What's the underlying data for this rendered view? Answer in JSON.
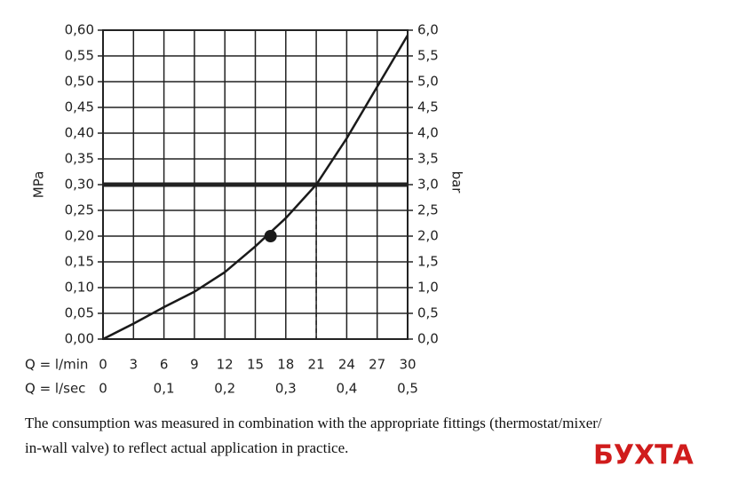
{
  "chart_data": {
    "type": "line",
    "x_label": "Q = l/min",
    "x2_label": "Q = l/sec",
    "y_label": "MPa",
    "y2_label": "bar",
    "x": [
      0,
      3,
      6,
      9,
      12,
      15,
      18,
      21,
      24,
      27,
      30
    ],
    "series": [
      {
        "color": "#1a1a1a",
        "values": [
          0,
          0.03,
          0.062,
          0.092,
          0.13,
          0.18,
          0.235,
          0.3,
          0.39,
          0.49,
          0.59
        ]
      }
    ],
    "xlim": [
      0,
      30
    ],
    "xticks": [
      0,
      3,
      6,
      9,
      12,
      15,
      18,
      21,
      24,
      27,
      30
    ],
    "x2lim": [
      0,
      0.5
    ],
    "x2ticks": [
      0,
      {
        "value": 0.1,
        "label": "0,1"
      },
      {
        "value": 0.2,
        "label": "0,2"
      },
      {
        "value": 0.3,
        "label": "0,3"
      },
      {
        "value": 0.4,
        "label": "0,4"
      },
      {
        "value": 0.5,
        "label": "0,5"
      }
    ],
    "ylim": [
      0,
      0.6
    ],
    "yticks": [
      {
        "value": 0,
        "label": "0,00"
      },
      {
        "value": 0.05,
        "label": "0,05"
      },
      {
        "value": 0.1,
        "label": "0,10"
      },
      {
        "value": 0.15,
        "label": "0,15"
      },
      {
        "value": 0.2,
        "label": "0,20"
      },
      {
        "value": 0.25,
        "label": "0,25"
      },
      {
        "value": 0.3,
        "label": "0,30"
      },
      {
        "value": 0.35,
        "label": "0,35"
      },
      {
        "value": 0.4,
        "label": "0,40"
      },
      {
        "value": 0.45,
        "label": "0,45"
      },
      {
        "value": 0.5,
        "label": "0,50"
      },
      {
        "value": 0.55,
        "label": "0,55"
      },
      {
        "value": 0.6,
        "label": "0,60"
      }
    ],
    "y2lim": [
      0,
      6
    ],
    "y2ticks": [
      {
        "value": 0,
        "label": "0,0"
      },
      {
        "value": 0.5,
        "label": "0,5"
      },
      {
        "value": 1,
        "label": "1,0"
      },
      {
        "value": 1.5,
        "label": "1,5"
      },
      {
        "value": 2,
        "label": "2,0"
      },
      {
        "value": 2.5,
        "label": "2,5"
      },
      {
        "value": 3,
        "label": "3,0"
      },
      {
        "value": 3.5,
        "label": "3,5"
      },
      {
        "value": 4,
        "label": "4,0"
      },
      {
        "value": 4.5,
        "label": "4,5"
      },
      {
        "value": 5,
        "label": "5,0"
      },
      {
        "value": 5.5,
        "label": "5,5"
      },
      {
        "value": 6,
        "label": "6,0"
      }
    ],
    "grid": true,
    "threshold_y": 0.3,
    "drop_line_x": 21,
    "operating_point": {
      "x": 16.5,
      "y": 0.2
    }
  },
  "caption": [
    "The consumption was measured in combination with the appropriate fittings (thermostat/mixer/",
    "in-wall valve) to reflect actual application in practice."
  ],
  "watermark": "БУХТА"
}
